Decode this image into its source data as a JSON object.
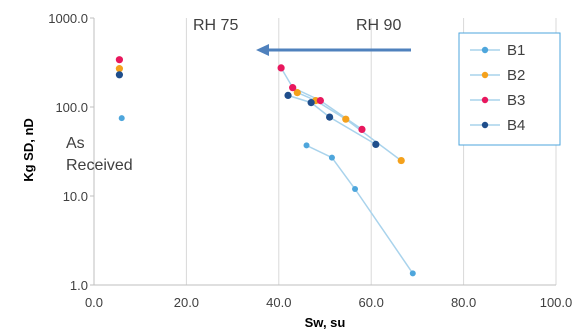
{
  "chart_data": {
    "type": "scatter",
    "xlabel": "Sw, su",
    "ylabel": "Kg SD, nD",
    "xlim": [
      0,
      100
    ],
    "ylim": [
      1,
      1000
    ],
    "y_scale": "log",
    "x_ticks": [
      "0.0",
      "20.0",
      "40.0",
      "60.0",
      "80.0",
      "100.0"
    ],
    "y_ticks": [
      "1.0",
      "10.0",
      "100.0",
      "1000.0"
    ],
    "grid": "vertical",
    "legend_position": "top-right",
    "annotations": {
      "rh75": "RH 75",
      "rh90": "RH 90",
      "as": "As",
      "received": "Received"
    },
    "series": [
      {
        "name": "B1",
        "color": "#4ea6dc",
        "line_color": "#a9d3ec",
        "as_received": {
          "x": 6.0,
          "y": 75
        },
        "points": [
          {
            "x": 46.0,
            "y": 37
          },
          {
            "x": 51.5,
            "y": 27
          },
          {
            "x": 56.5,
            "y": 12
          },
          {
            "x": 69.0,
            "y": 1.35
          }
        ]
      },
      {
        "name": "B2",
        "color": "#f4a11c",
        "line_color": "#a9d3ec",
        "as_received": {
          "x": 5.5,
          "y": 270
        },
        "points": [
          {
            "x": 44.0,
            "y": 145
          },
          {
            "x": 48.0,
            "y": 118
          },
          {
            "x": 54.5,
            "y": 73
          },
          {
            "x": 66.5,
            "y": 25
          }
        ]
      },
      {
        "name": "B3",
        "color": "#e8175d",
        "line_color": "#a9d3ec",
        "as_received": {
          "x": 5.5,
          "y": 340
        },
        "points": [
          {
            "x": 40.5,
            "y": 275
          },
          {
            "x": 43.0,
            "y": 165
          },
          {
            "x": 49.0,
            "y": 118
          },
          {
            "x": 58.0,
            "y": 56
          }
        ]
      },
      {
        "name": "B4",
        "color": "#1f4e8c",
        "line_color": "#a9d3ec",
        "as_received": {
          "x": 5.5,
          "y": 230
        },
        "points": [
          {
            "x": 42.0,
            "y": 135
          },
          {
            "x": 47.0,
            "y": 112
          },
          {
            "x": 51.0,
            "y": 77
          },
          {
            "x": 61.0,
            "y": 38
          }
        ]
      }
    ],
    "arrow_color": "#4f81bd"
  }
}
